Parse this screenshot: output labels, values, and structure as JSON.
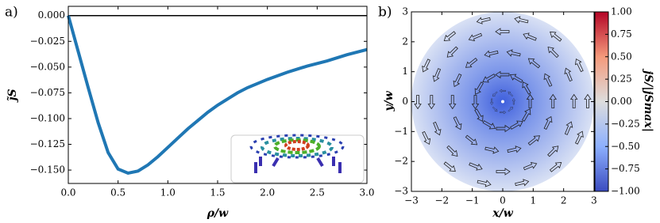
{
  "chart_data": [
    {
      "type": "line",
      "panel_label": "a)",
      "xlabel": "ρ/w",
      "ylabel": "j̃S",
      "x": [
        0,
        0.1,
        0.2,
        0.3,
        0.4,
        0.5,
        0.6,
        0.7,
        0.8,
        0.9,
        1.0,
        1.1,
        1.2,
        1.3,
        1.4,
        1.5,
        1.6,
        1.7,
        1.8,
        1.9,
        2.0,
        2.2,
        2.4,
        2.6,
        2.8,
        3.0
      ],
      "series": [
        {
          "color": "#1f77b4",
          "values": [
            0,
            -0.035,
            -0.07,
            -0.104,
            -0.133,
            -0.149,
            -0.153,
            -0.151,
            -0.145,
            -0.137,
            -0.128,
            -0.119,
            -0.11,
            -0.102,
            -0.094,
            -0.087,
            -0.081,
            -0.075,
            -0.07,
            -0.066,
            -0.062,
            -0.055,
            -0.049,
            -0.044,
            -0.038,
            -0.033
          ]
        }
      ],
      "hline": 0,
      "xlim": [
        0,
        3
      ],
      "ylim": [
        -0.163,
        0.009
      ],
      "xticks": [
        {
          "value": 0,
          "label": "0.0"
        },
        {
          "value": 0.5,
          "label": "0.5"
        },
        {
          "value": 1,
          "label": "1.0"
        },
        {
          "value": 1.5,
          "label": "1.5"
        },
        {
          "value": 2,
          "label": "2.0"
        },
        {
          "value": 2.5,
          "label": "2.5"
        },
        {
          "value": 3,
          "label": "3.0"
        }
      ],
      "yticks": [
        {
          "value": 0,
          "label": "0.000"
        },
        {
          "value": -0.025,
          "label": "−0.025"
        },
        {
          "value": -0.05,
          "label": "−0.050"
        },
        {
          "value": -0.075,
          "label": "−0.075"
        },
        {
          "value": -0.1,
          "label": "−0.100"
        },
        {
          "value": -0.125,
          "label": "−0.125"
        },
        {
          "value": -0.15,
          "label": "−0.150"
        }
      ]
    },
    {
      "type": "heatmap",
      "panel_label": "b)",
      "xlabel": "x/w",
      "ylabel": "y/w",
      "xlim": [
        -3,
        3
      ],
      "ylim": [
        -3,
        3
      ],
      "xticks": [
        {
          "value": -3,
          "label": "−3"
        },
        {
          "value": -2,
          "label": "−2"
        },
        {
          "value": -1,
          "label": "−1"
        },
        0,
        1,
        2,
        3
      ],
      "yticks": [
        {
          "value": -3,
          "label": "−3"
        },
        {
          "value": -2,
          "label": "−2"
        },
        {
          "value": -1,
          "label": "−1"
        },
        0,
        1,
        2,
        3
      ],
      "colorbar": {
        "label": "jS/|jSmax|",
        "lim": [
          -1,
          1
        ],
        "ticks": [
          {
            "value": 1,
            "label": "1.00"
          },
          {
            "value": 0.75,
            "label": "0.75"
          },
          {
            "value": 0.5,
            "label": "0.50"
          },
          {
            "value": 0.25,
            "label": "0.25"
          },
          {
            "value": 0,
            "label": "0.00"
          },
          {
            "value": -0.25,
            "label": "−0.25"
          },
          {
            "value": -0.5,
            "label": "−0.50"
          },
          {
            "value": -0.75,
            "label": "−0.75"
          },
          {
            "value": -1,
            "label": "−1.00"
          }
        ]
      }
    }
  ]
}
